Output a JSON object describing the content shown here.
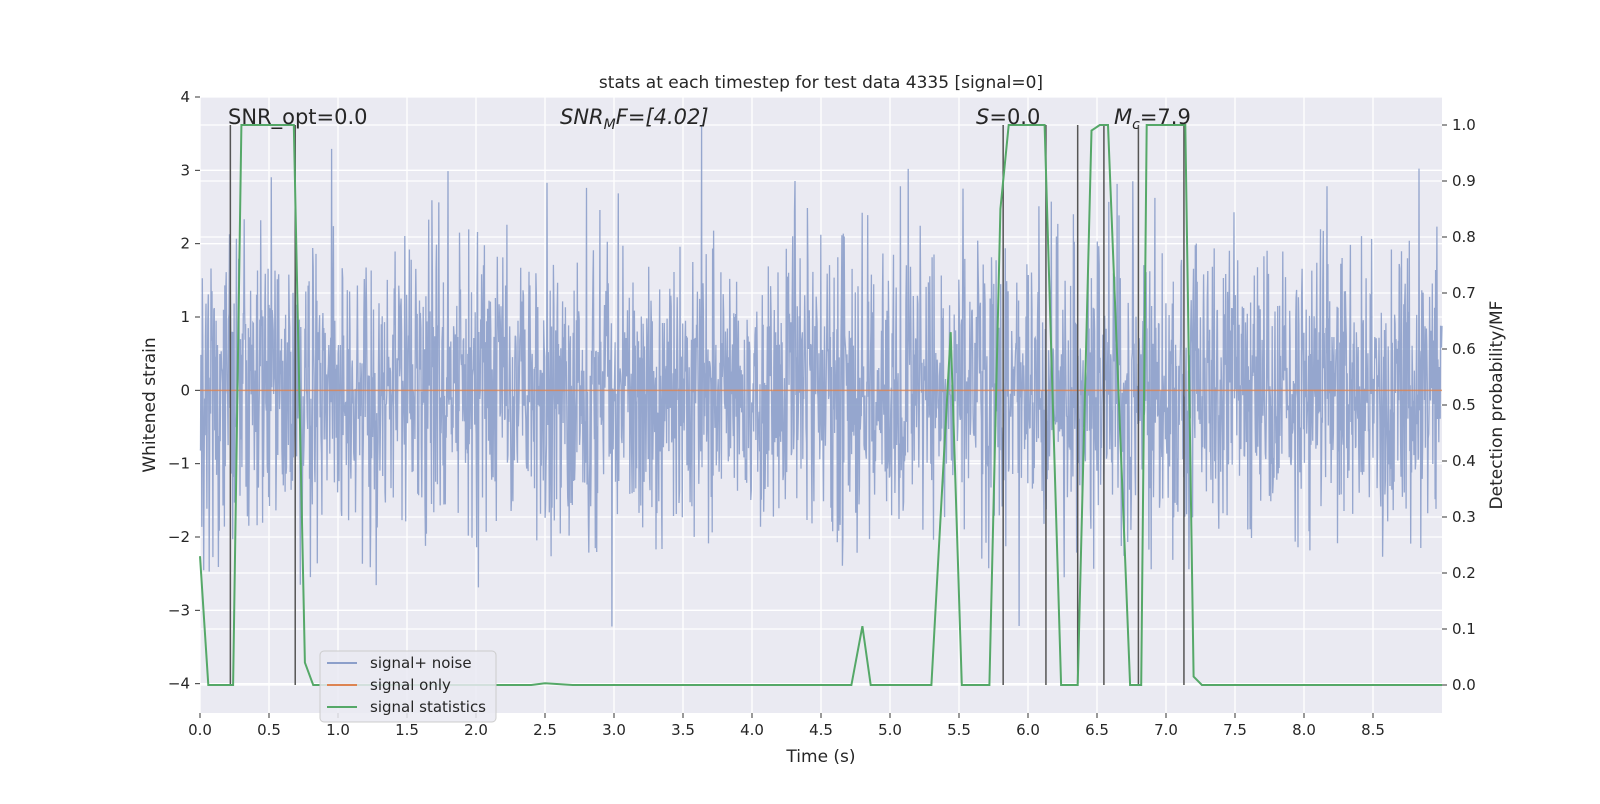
{
  "chart_data": {
    "type": "line",
    "title": "stats at each timestep for test data 4335 [signal=0]",
    "xlabel": "Time (s)",
    "ylabel_left": "Whitened strain",
    "ylabel_right": "Detection probability/MF",
    "xlim": [
      0.0,
      9.0
    ],
    "ylim_left": [
      -4.4,
      4.0
    ],
    "ylim_right": [
      -0.05,
      1.05
    ],
    "x_ticks": [
      "0.0",
      "0.5",
      "1.0",
      "1.5",
      "2.0",
      "2.5",
      "3.0",
      "3.5",
      "4.0",
      "4.5",
      "5.0",
      "5.5",
      "6.0",
      "6.5",
      "7.0",
      "7.5",
      "8.0",
      "8.5"
    ],
    "y_ticks_left": [
      "−4",
      "−3",
      "−2",
      "−1",
      "0",
      "1",
      "2",
      "3",
      "4"
    ],
    "y_ticks_right": [
      "0.0",
      "0.1",
      "0.2",
      "0.3",
      "0.4",
      "0.5",
      "0.6",
      "0.7",
      "0.8",
      "0.9",
      "1.0"
    ],
    "grid": true,
    "legend_position": "lower-left",
    "legend": [
      "signal+ noise",
      "signal only",
      "signal statistics"
    ],
    "colors": {
      "signal_noise": "#8c9fca",
      "signal_only": "#dd8452",
      "signal_statistics": "#55a868",
      "vlines": "#555555",
      "axes_bg": "#eaeaf2",
      "grid": "#ffffff"
    },
    "annotations": {
      "snr_opt": "SNR_opt=0.0",
      "snr_mf_base": "SNR",
      "snr_mf_sub": "M",
      "snr_mf_rest": "F=[4.02]",
      "s_base": "S",
      "s_rest": "=0.0",
      "mc_base": "M",
      "mc_sub": "c",
      "mc_rest": "=7.9"
    },
    "series": [
      {
        "name": "signal+ noise",
        "description_stats": {
          "approx_std": 1.0,
          "approx_min": -3.8,
          "approx_max": 3.6,
          "n_samples": 900
        }
      },
      {
        "name": "signal only",
        "constant_value": 0.0
      },
      {
        "name": "signal statistics",
        "axis": "right",
        "x": [
          0.0,
          0.06,
          0.1,
          0.24,
          0.3,
          0.68,
          0.76,
          0.82,
          2.4,
          2.5,
          2.7,
          4.72,
          4.8,
          4.86,
          5.3,
          5.44,
          5.52,
          5.72,
          5.8,
          5.86,
          6.12,
          6.24,
          6.32,
          6.36,
          6.46,
          6.52,
          6.58,
          6.74,
          6.82,
          6.86,
          7.14,
          7.2,
          7.26,
          9.0
        ],
        "y": [
          0.23,
          0.0,
          0.0,
          0.0,
          1.0,
          1.0,
          0.04,
          0.0,
          0.0,
          0.003,
          0.0,
          0.0,
          0.105,
          0.0,
          0.0,
          0.63,
          0.0,
          0.0,
          0.85,
          1.0,
          1.0,
          0.0,
          0.0,
          0.0,
          0.99,
          1.0,
          1.0,
          0.0,
          0.0,
          1.0,
          1.0,
          0.015,
          0.0,
          0.0
        ]
      },
      {
        "name": "vertical markers",
        "x": [
          0.22,
          0.69,
          5.82,
          6.13,
          6.36,
          6.55,
          6.8,
          7.13
        ]
      }
    ]
  }
}
